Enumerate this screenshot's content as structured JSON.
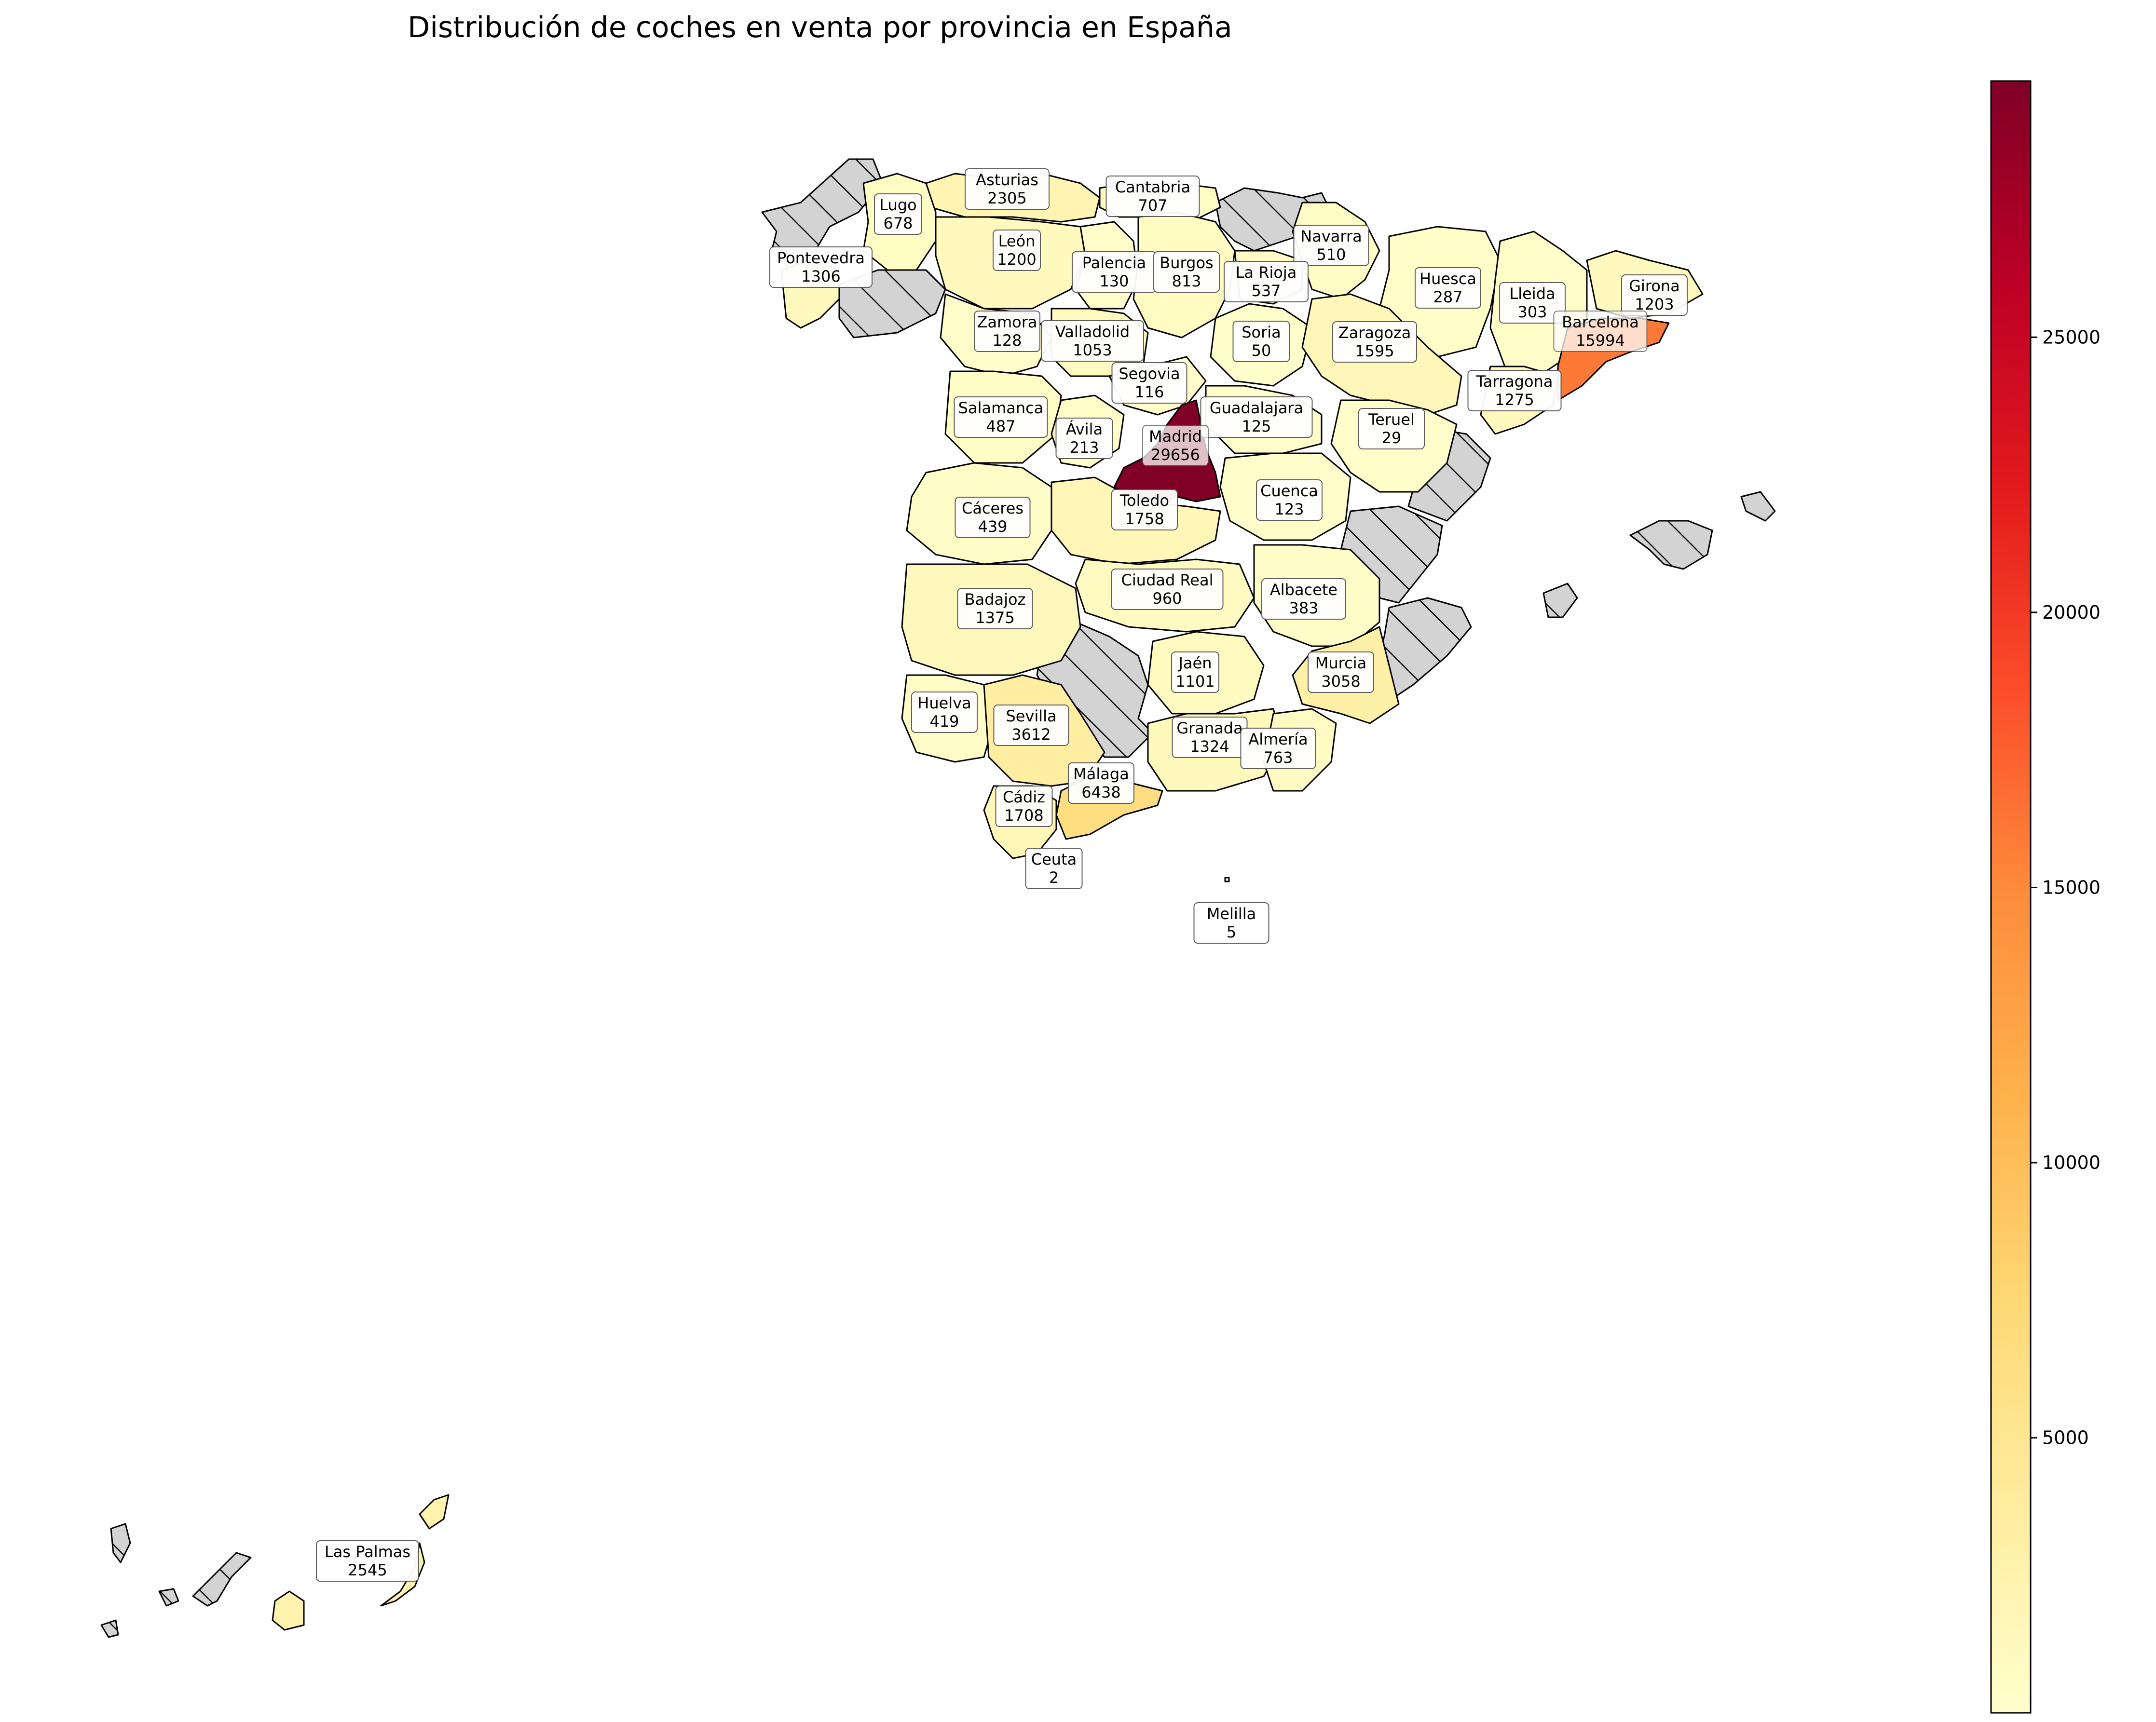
{
  "title": "Distribución de coches en venta por provincia en España",
  "colormap": [
    "#ffffcc",
    "#ffeda0",
    "#fed976",
    "#feb24c",
    "#fd8d3c",
    "#fc4e2a",
    "#e31a1c",
    "#bd0026",
    "#800026"
  ],
  "nodata_color": "#d3d3d3",
  "colorbar": {
    "min": 2,
    "max": 29656,
    "ticks": [
      5000,
      10000,
      15000,
      20000,
      25000
    ]
  },
  "provinces": [
    {
      "name": "Asturias",
      "value": 2305
    },
    {
      "name": "Cantabria",
      "value": 707
    },
    {
      "name": "Lugo",
      "value": 678
    },
    {
      "name": "León",
      "value": 1200
    },
    {
      "name": "Navarra",
      "value": 510
    },
    {
      "name": "Pontevedra",
      "value": 1306
    },
    {
      "name": "Palencia",
      "value": 130
    },
    {
      "name": "Burgos",
      "value": 813
    },
    {
      "name": "La Rioja",
      "value": 537
    },
    {
      "name": "Huesca",
      "value": 287
    },
    {
      "name": "Girona",
      "value": 1203
    },
    {
      "name": "Lleida",
      "value": 303
    },
    {
      "name": "Zamora",
      "value": 128
    },
    {
      "name": "Valladolid",
      "value": 1053
    },
    {
      "name": "Soria",
      "value": 50
    },
    {
      "name": "Zaragoza",
      "value": 1595
    },
    {
      "name": "Barcelona",
      "value": 15994
    },
    {
      "name": "Segovia",
      "value": 116
    },
    {
      "name": "Tarragona",
      "value": 1275
    },
    {
      "name": "Salamanca",
      "value": 487
    },
    {
      "name": "Guadalajara",
      "value": 125
    },
    {
      "name": "Ávila",
      "value": 213
    },
    {
      "name": "Madrid",
      "value": 29656
    },
    {
      "name": "Teruel",
      "value": 29
    },
    {
      "name": "Cáceres",
      "value": 439
    },
    {
      "name": "Toledo",
      "value": 1758
    },
    {
      "name": "Cuenca",
      "value": 123
    },
    {
      "name": "Ciudad Real",
      "value": 960
    },
    {
      "name": "Albacete",
      "value": 383
    },
    {
      "name": "Badajoz",
      "value": 1375
    },
    {
      "name": "Jaén",
      "value": 1101
    },
    {
      "name": "Murcia",
      "value": 3058
    },
    {
      "name": "Huelva",
      "value": 419
    },
    {
      "name": "Sevilla",
      "value": 3612
    },
    {
      "name": "Granada",
      "value": 1324
    },
    {
      "name": "Almería",
      "value": 763
    },
    {
      "name": "Málaga",
      "value": 6438
    },
    {
      "name": "Cádiz",
      "value": 1708
    },
    {
      "name": "Ceuta",
      "value": 2
    },
    {
      "name": "Melilla",
      "value": 5
    },
    {
      "name": "Las Palmas",
      "value": 2545
    }
  ]
}
